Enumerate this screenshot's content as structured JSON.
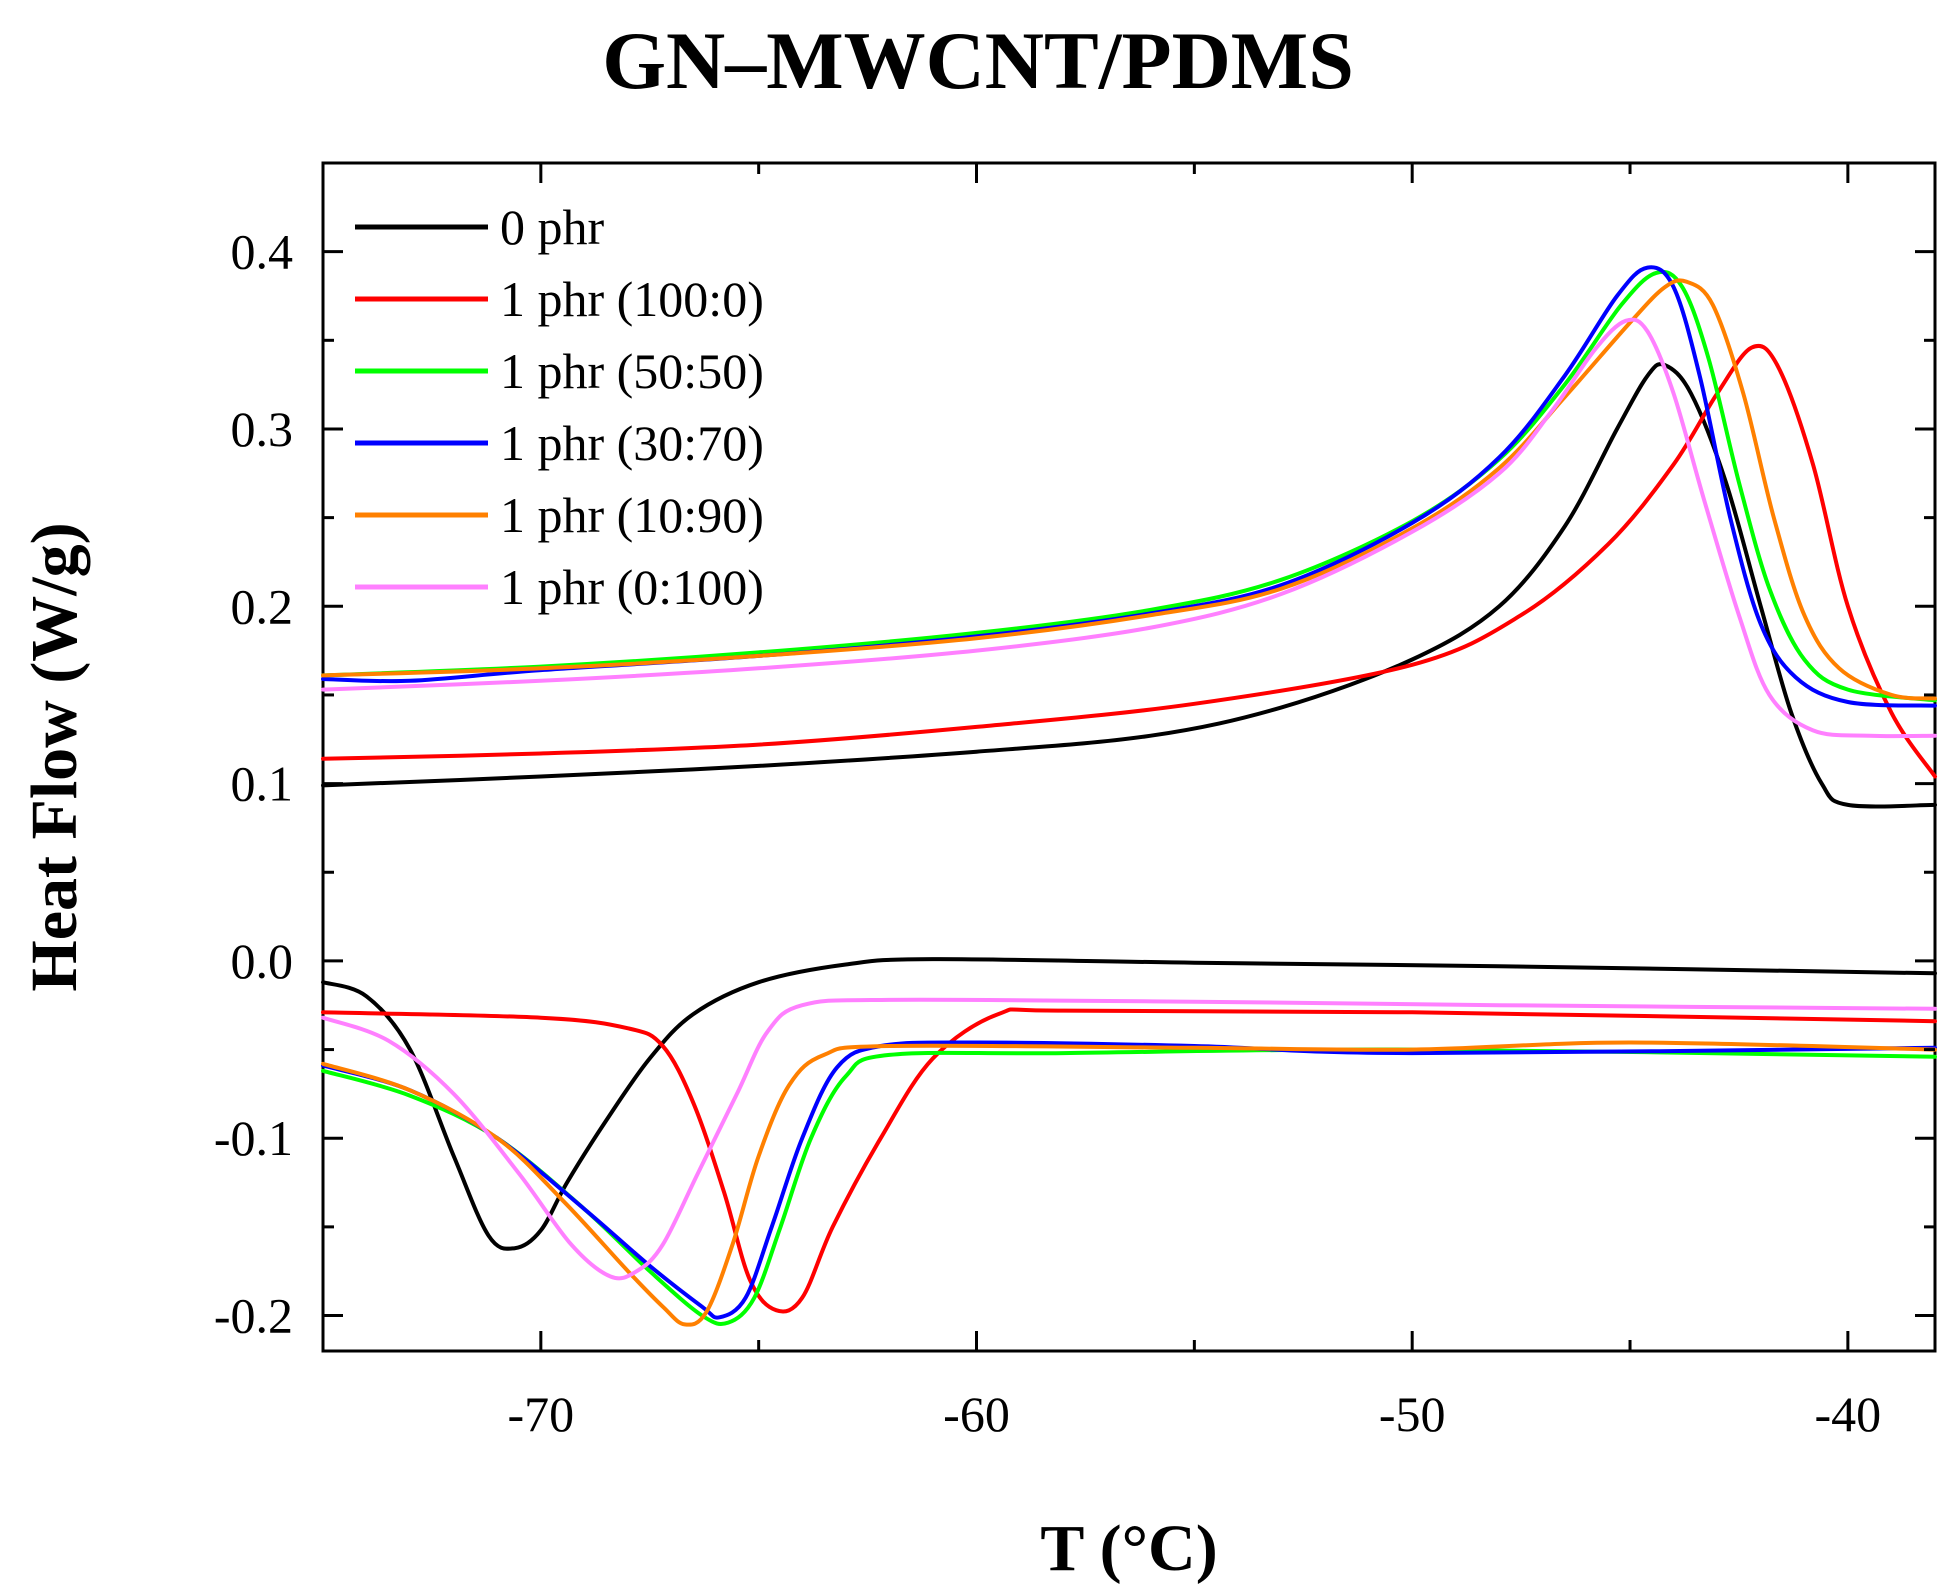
{
  "chart_data": {
    "type": "line",
    "title": "GN–MWCNT/PDMS",
    "xlabel": "T (°C)",
    "ylabel": "Heat Flow (W/g)",
    "xlim": [
      -75,
      -38
    ],
    "ylim": [
      -0.22,
      0.45
    ],
    "xticks": [
      -70,
      -60,
      -50,
      -40
    ],
    "xtick_labels": [
      "-70",
      "-60",
      "-50",
      "-40"
    ],
    "yticks": [
      -0.2,
      -0.1,
      0.0,
      0.1,
      0.2,
      0.3,
      0.4
    ],
    "ytick_labels": [
      "-0.2",
      "-0.1",
      "0.0",
      "0.1",
      "0.2",
      "0.3",
      "0.4"
    ],
    "legend_position": "top-left",
    "series": [
      {
        "name": "0 phr",
        "color": "#000000",
        "heating": [
          [
            -75,
            0.099
          ],
          [
            -70,
            0.104
          ],
          [
            -65,
            0.11
          ],
          [
            -60,
            0.118
          ],
          [
            -56,
            0.127
          ],
          [
            -53,
            0.143
          ],
          [
            -50,
            0.17
          ],
          [
            -48,
            0.2
          ],
          [
            -46.5,
            0.245
          ],
          [
            -45.3,
            0.3
          ],
          [
            -44.6,
            0.33
          ],
          [
            -44.2,
            0.336
          ],
          [
            -43.6,
            0.32
          ],
          [
            -42.8,
            0.27
          ],
          [
            -42,
            0.2
          ],
          [
            -41.3,
            0.14
          ],
          [
            -40.6,
            0.1
          ],
          [
            -40,
            0.088
          ],
          [
            -38,
            0.088
          ]
        ],
        "cooling": [
          [
            -75,
            -0.012
          ],
          [
            -74,
            -0.02
          ],
          [
            -73,
            -0.05
          ],
          [
            -72,
            -0.11
          ],
          [
            -71.2,
            -0.155
          ],
          [
            -70.6,
            -0.162
          ],
          [
            -70,
            -0.152
          ],
          [
            -69.4,
            -0.125
          ],
          [
            -68.5,
            -0.09
          ],
          [
            -67.5,
            -0.055
          ],
          [
            -66.5,
            -0.03
          ],
          [
            -65,
            -0.012
          ],
          [
            -63,
            -0.002
          ],
          [
            -61,
            0.001
          ],
          [
            -55,
            -0.001
          ],
          [
            -48,
            -0.003
          ],
          [
            -38,
            -0.007
          ]
        ]
      },
      {
        "name": "1 phr (100:0)",
        "color": "#ff0000",
        "heating": [
          [
            -75,
            0.114
          ],
          [
            -70,
            0.117
          ],
          [
            -65,
            0.122
          ],
          [
            -60,
            0.132
          ],
          [
            -55,
            0.145
          ],
          [
            -50,
            0.167
          ],
          [
            -47.5,
            0.195
          ],
          [
            -45.5,
            0.235
          ],
          [
            -44,
            0.28
          ],
          [
            -43,
            0.32
          ],
          [
            -42.2,
            0.346
          ],
          [
            -41.6,
            0.335
          ],
          [
            -40.8,
            0.28
          ],
          [
            -40,
            0.2
          ],
          [
            -39,
            0.14
          ],
          [
            -38,
            0.104
          ]
        ],
        "cooling": [
          [
            -75,
            -0.029
          ],
          [
            -70,
            -0.032
          ],
          [
            -68,
            -0.038
          ],
          [
            -67.2,
            -0.048
          ],
          [
            -66.5,
            -0.08
          ],
          [
            -65.8,
            -0.13
          ],
          [
            -65.2,
            -0.18
          ],
          [
            -64.6,
            -0.197
          ],
          [
            -64,
            -0.19
          ],
          [
            -63.3,
            -0.15
          ],
          [
            -62.2,
            -0.1
          ],
          [
            -61,
            -0.055
          ],
          [
            -59.5,
            -0.03
          ],
          [
            -58,
            -0.028
          ],
          [
            -50,
            -0.029
          ],
          [
            -38,
            -0.034
          ]
        ]
      },
      {
        "name": "1 phr (50:50)",
        "color": "#00ff00",
        "heating": [
          [
            -75,
            0.161
          ],
          [
            -70,
            0.166
          ],
          [
            -65,
            0.174
          ],
          [
            -60,
            0.185
          ],
          [
            -56,
            0.198
          ],
          [
            -53,
            0.215
          ],
          [
            -50,
            0.248
          ],
          [
            -48,
            0.283
          ],
          [
            -46.5,
            0.325
          ],
          [
            -45.2,
            0.37
          ],
          [
            -44.4,
            0.388
          ],
          [
            -43.8,
            0.38
          ],
          [
            -43.2,
            0.34
          ],
          [
            -42.5,
            0.27
          ],
          [
            -41.8,
            0.21
          ],
          [
            -41,
            0.17
          ],
          [
            -40,
            0.153
          ],
          [
            -38,
            0.147
          ]
        ],
        "cooling": [
          [
            -75,
            -0.062
          ],
          [
            -73,
            -0.076
          ],
          [
            -71,
            -0.1
          ],
          [
            -69,
            -0.14
          ],
          [
            -67.5,
            -0.175
          ],
          [
            -66.3,
            -0.2
          ],
          [
            -65.7,
            -0.204
          ],
          [
            -65.1,
            -0.19
          ],
          [
            -64.5,
            -0.15
          ],
          [
            -63.8,
            -0.1
          ],
          [
            -63,
            -0.065
          ],
          [
            -62,
            -0.053
          ],
          [
            -58,
            -0.052
          ],
          [
            -50,
            -0.05
          ],
          [
            -38,
            -0.054
          ]
        ]
      },
      {
        "name": "1 phr (30:70)",
        "color": "#0000ff",
        "heating": [
          [
            -75,
            0.159
          ],
          [
            -73,
            0.158
          ],
          [
            -70,
            0.164
          ],
          [
            -65,
            0.172
          ],
          [
            -60,
            0.183
          ],
          [
            -56,
            0.196
          ],
          [
            -53,
            0.212
          ],
          [
            -50,
            0.247
          ],
          [
            -48,
            0.284
          ],
          [
            -46.5,
            0.33
          ],
          [
            -45.3,
            0.375
          ],
          [
            -44.6,
            0.391
          ],
          [
            -44,
            0.38
          ],
          [
            -43.4,
            0.33
          ],
          [
            -42.7,
            0.25
          ],
          [
            -42,
            0.19
          ],
          [
            -41.2,
            0.16
          ],
          [
            -40,
            0.146
          ],
          [
            -38,
            0.144
          ]
        ],
        "cooling": [
          [
            -75,
            -0.059
          ],
          [
            -73,
            -0.073
          ],
          [
            -71,
            -0.1
          ],
          [
            -69,
            -0.14
          ],
          [
            -67.5,
            -0.172
          ],
          [
            -66.3,
            -0.195
          ],
          [
            -65.9,
            -0.201
          ],
          [
            -65.3,
            -0.19
          ],
          [
            -64.7,
            -0.15
          ],
          [
            -64,
            -0.1
          ],
          [
            -63.2,
            -0.06
          ],
          [
            -62.2,
            -0.048
          ],
          [
            -60,
            -0.046
          ],
          [
            -55,
            -0.048
          ],
          [
            -50,
            -0.052
          ],
          [
            -38,
            -0.049
          ]
        ]
      },
      {
        "name": "1 phr (10:90)",
        "color": "#ff8000",
        "heating": [
          [
            -75,
            0.161
          ],
          [
            -70,
            0.165
          ],
          [
            -65,
            0.172
          ],
          [
            -60,
            0.182
          ],
          [
            -56,
            0.195
          ],
          [
            -53,
            0.21
          ],
          [
            -50,
            0.244
          ],
          [
            -48,
            0.278
          ],
          [
            -46.5,
            0.318
          ],
          [
            -45,
            0.36
          ],
          [
            -44.2,
            0.38
          ],
          [
            -43.7,
            0.383
          ],
          [
            -43.1,
            0.37
          ],
          [
            -42.4,
            0.32
          ],
          [
            -41.7,
            0.25
          ],
          [
            -41,
            0.195
          ],
          [
            -40.2,
            0.165
          ],
          [
            -39,
            0.15
          ],
          [
            -38,
            0.148
          ]
        ],
        "cooling": [
          [
            -75,
            -0.058
          ],
          [
            -73,
            -0.073
          ],
          [
            -71,
            -0.1
          ],
          [
            -69.5,
            -0.135
          ],
          [
            -68,
            -0.175
          ],
          [
            -67.2,
            -0.195
          ],
          [
            -66.7,
            -0.205
          ],
          [
            -66.2,
            -0.198
          ],
          [
            -65.6,
            -0.16
          ],
          [
            -65,
            -0.11
          ],
          [
            -64.3,
            -0.07
          ],
          [
            -63.5,
            -0.053
          ],
          [
            -62,
            -0.048
          ],
          [
            -55,
            -0.049
          ],
          [
            -50,
            -0.05
          ],
          [
            -45,
            -0.046
          ],
          [
            -38,
            -0.05
          ]
        ]
      },
      {
        "name": "1 phr (0:100)",
        "color": "#ff80ff",
        "heating": [
          [
            -75,
            0.153
          ],
          [
            -70,
            0.158
          ],
          [
            -65,
            0.165
          ],
          [
            -60,
            0.175
          ],
          [
            -56,
            0.188
          ],
          [
            -53,
            0.207
          ],
          [
            -50,
            0.242
          ],
          [
            -48,
            0.275
          ],
          [
            -46.8,
            0.31
          ],
          [
            -45.8,
            0.345
          ],
          [
            -45.1,
            0.361
          ],
          [
            -44.6,
            0.355
          ],
          [
            -44,
            0.32
          ],
          [
            -43.3,
            0.26
          ],
          [
            -42.5,
            0.195
          ],
          [
            -41.8,
            0.15
          ],
          [
            -40.8,
            0.13
          ],
          [
            -39.5,
            0.127
          ],
          [
            -38,
            0.127
          ]
        ],
        "cooling": [
          [
            -75,
            -0.032
          ],
          [
            -73.5,
            -0.045
          ],
          [
            -72,
            -0.075
          ],
          [
            -70.5,
            -0.12
          ],
          [
            -69.3,
            -0.16
          ],
          [
            -68.4,
            -0.178
          ],
          [
            -67.8,
            -0.175
          ],
          [
            -67.2,
            -0.16
          ],
          [
            -66.4,
            -0.12
          ],
          [
            -65.5,
            -0.075
          ],
          [
            -64.8,
            -0.04
          ],
          [
            -64,
            -0.025
          ],
          [
            -62,
            -0.022
          ],
          [
            -55,
            -0.023
          ],
          [
            -48,
            -0.025
          ],
          [
            -38,
            -0.027
          ]
        ]
      }
    ]
  }
}
